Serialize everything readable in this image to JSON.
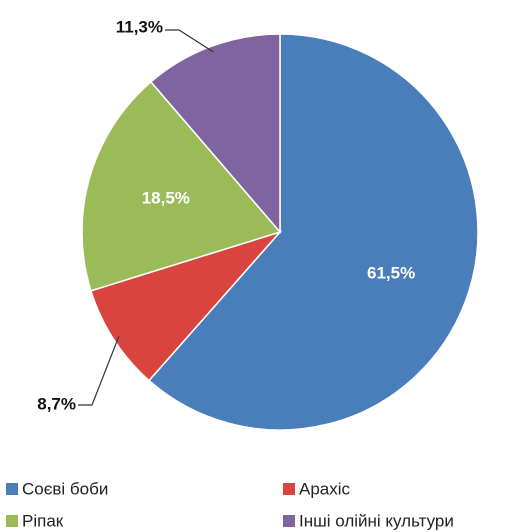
{
  "chart_data": {
    "type": "pie",
    "categories": [
      "Соєві боби",
      "Арахіс",
      "Ріпак",
      "Інші олійні культури"
    ],
    "values": [
      61.5,
      8.7,
      18.5,
      11.3
    ],
    "value_labels": [
      "61,5%",
      "8,7%",
      "18,5%",
      "11,3%"
    ],
    "colors": [
      "#4a7ebb",
      "#d9443e",
      "#9bbb59",
      "#8064a2"
    ],
    "legend": "bottom"
  }
}
